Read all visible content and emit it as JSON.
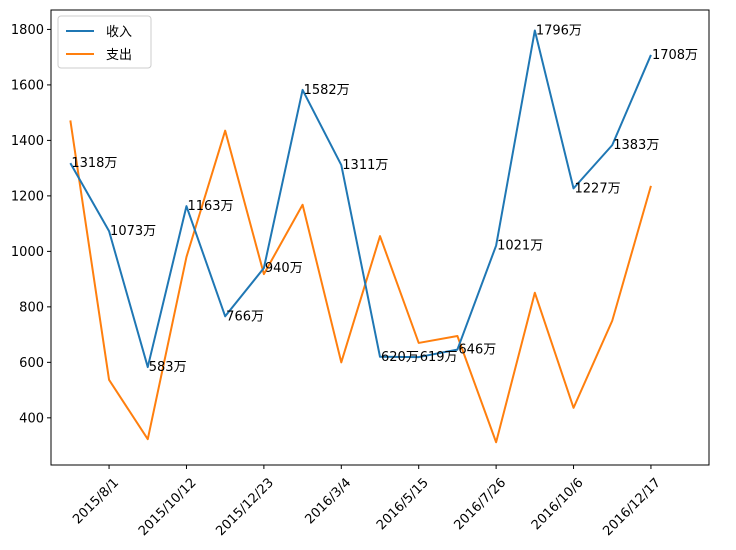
{
  "chart_data": {
    "type": "line",
    "title": "",
    "xlabel": "",
    "ylabel": "",
    "ylim": [
      230,
      1870
    ],
    "x_tick_labels": [
      "2015/8/1",
      "2015/10/12",
      "2015/12/23",
      "2016/3/4",
      "2016/5/15",
      "2016/7/26",
      "2016/10/6",
      "2016/12/17"
    ],
    "x_tick_positions": [
      1,
      3,
      5,
      7,
      9,
      11,
      13,
      15
    ],
    "xlim": [
      -0.5,
      16.5
    ],
    "y_ticks": [
      400,
      600,
      800,
      1000,
      1200,
      1400,
      1600,
      1800
    ],
    "legend_position": "top-left",
    "series": [
      {
        "name": "收入",
        "color": "#1f77b4",
        "values": [
          1318,
          1073,
          583,
          1163,
          766,
          940,
          1582,
          1311,
          620,
          619,
          646,
          1021,
          1796,
          1227,
          1383,
          1708
        ],
        "labels": [
          "1318万",
          "1073万",
          "583万",
          "1163万",
          "766万",
          "940万",
          "1582万",
          "1311万",
          "620万",
          "619万",
          "646万",
          "1021万",
          "1796万",
          "1227万",
          "1383万",
          "1708万"
        ]
      },
      {
        "name": "支出",
        "color": "#ff7f0e",
        "values": [
          1472,
          537,
          323,
          980,
          1435,
          918,
          1168,
          600,
          1055,
          670,
          695,
          312,
          851,
          436,
          750,
          1236
        ]
      }
    ]
  }
}
